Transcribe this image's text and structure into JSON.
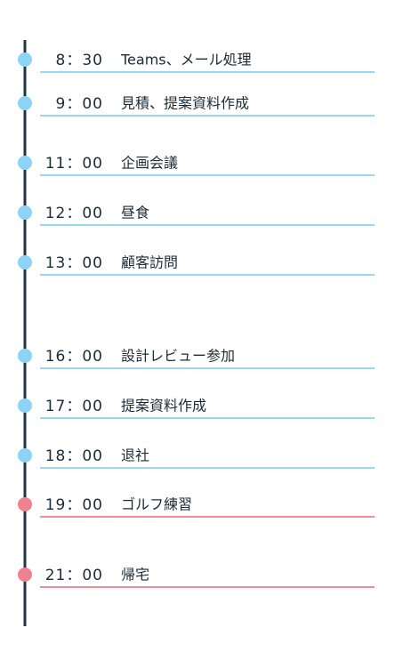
{
  "items": [
    {
      "time": "8：30",
      "label": "Teams、メール処理",
      "color": "#8dd3f5"
    },
    {
      "time": "9：00",
      "label": "見積、提案資料作成",
      "color": "#8dd3f5"
    },
    {
      "time": "11：00",
      "label": "企画会議",
      "color": "#8dd3f5"
    },
    {
      "time": "12：00",
      "label": "昼食",
      "color": "#8dd3f5"
    },
    {
      "time": "13：00",
      "label": "顧客訪問",
      "color": "#8dd3f5"
    },
    {
      "time": "16：00",
      "label": "設計レビュー参加",
      "color": "#8dd3f5"
    },
    {
      "time": "17：00",
      "label": "提案資料作成",
      "color": "#8dd3f5"
    },
    {
      "time": "18：00",
      "label": "退社",
      "color": "#8dd3f5"
    },
    {
      "time": "19：00",
      "label": "ゴルフ練習",
      "color": "#f0828f"
    },
    {
      "time": "21：00",
      "label": "帰宅",
      "color": "#f0828f"
    }
  ]
}
